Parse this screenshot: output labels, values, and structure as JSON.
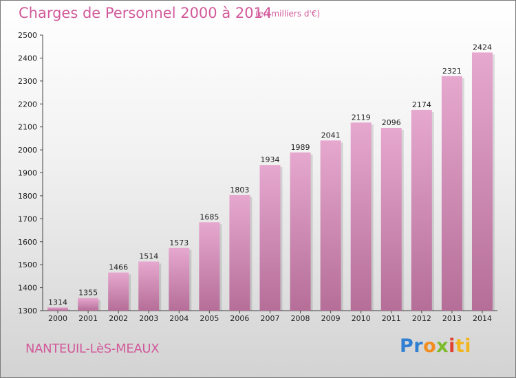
{
  "chart_data": {
    "type": "bar",
    "title": "Charges de Personnel 2000 à 2014",
    "subtitle": "(en milliers d'€)",
    "categories": [
      "2000",
      "2001",
      "2002",
      "2003",
      "2004",
      "2005",
      "2006",
      "2007",
      "2008",
      "2009",
      "2010",
      "2011",
      "2012",
      "2013",
      "2014"
    ],
    "values": [
      1314,
      1355,
      1466,
      1514,
      1573,
      1685,
      1803,
      1934,
      1989,
      2041,
      2119,
      2096,
      2174,
      2321,
      2424
    ],
    "ylim": [
      1300,
      2500
    ],
    "yticks": [
      1300,
      1400,
      1500,
      1600,
      1700,
      1800,
      1900,
      2000,
      2100,
      2200,
      2300,
      2400,
      2500
    ],
    "grid": false,
    "colors": {
      "bar_top": "#e6a8cf",
      "bar_bottom": "#b56e98",
      "accent": "#d25a9a"
    }
  },
  "footer": {
    "commune": "NANTEUIL-LèS-MEAUX",
    "logo_letters": [
      "Pr",
      "o",
      "x",
      "i",
      "ti"
    ]
  }
}
